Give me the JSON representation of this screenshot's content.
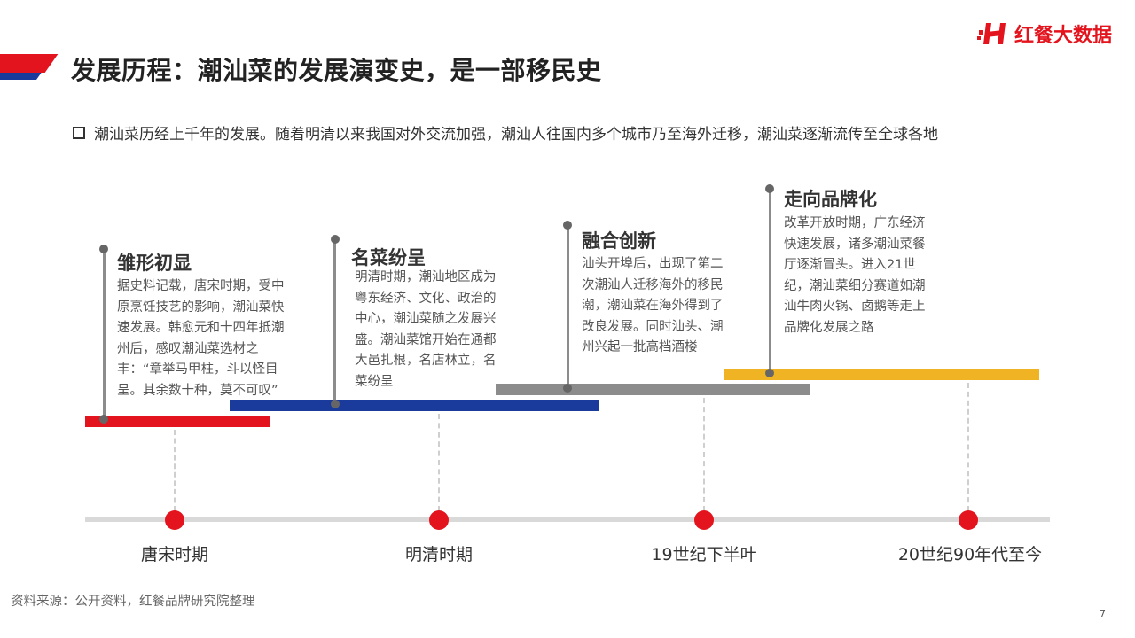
{
  "brand": {
    "logo_text": "红餐大数据",
    "accent_color": "#e3141d",
    "secondary_color": "#1a3a9c"
  },
  "title": "发展历程：潮汕菜的发展演变史，是一部移民史",
  "summary": "潮汕菜历经上千年的发展。随着明清以来我国对外交流加强，潮汕人往国内多个城市乃至海外迁移，潮汕菜逐渐流传至全球各地",
  "stages": [
    {
      "title": "雏形初显",
      "desc": "据史料记载，唐宋时期，受中原烹饪技艺的影响，潮汕菜快速发展。韩愈元和十四年抵潮州后，感叹潮汕菜选材之丰：“章举马甲柱，斗以怪目呈。其余数十种，莫不可叹”",
      "color": "#e3141d"
    },
    {
      "title": "名菜纷呈",
      "desc": "明清时期，潮汕地区成为粤东经济、文化、政治的中心，潮汕菜随之发展兴盛。潮汕菜馆开始在通都大邑扎根，名店林立，名菜纷呈",
      "color": "#1a3a9c"
    },
    {
      "title": "融合创新",
      "desc": "汕头开埠后，出现了第二次潮汕人迁移海外的移民潮，潮汕菜在海外得到了改良发展。同时汕头、潮州兴起一批高档酒楼",
      "color": "#8c8c8c"
    },
    {
      "title": "走向品牌化",
      "desc": "改革开放时期，广东经济快速发展，诸多潮汕菜餐厅逐渐冒头。进入21世纪，潮汕菜细分赛道如潮汕牛肉火锅、卤鹅等走上品牌化发展之路",
      "color": "#f0b323"
    }
  ],
  "eras": [
    "唐宋时期",
    "明清时期",
    "19世纪下半叶",
    "20世纪90年代至今"
  ],
  "source": "资料来源：公开资料，红餐品牌研究院整理",
  "page_number": "7"
}
